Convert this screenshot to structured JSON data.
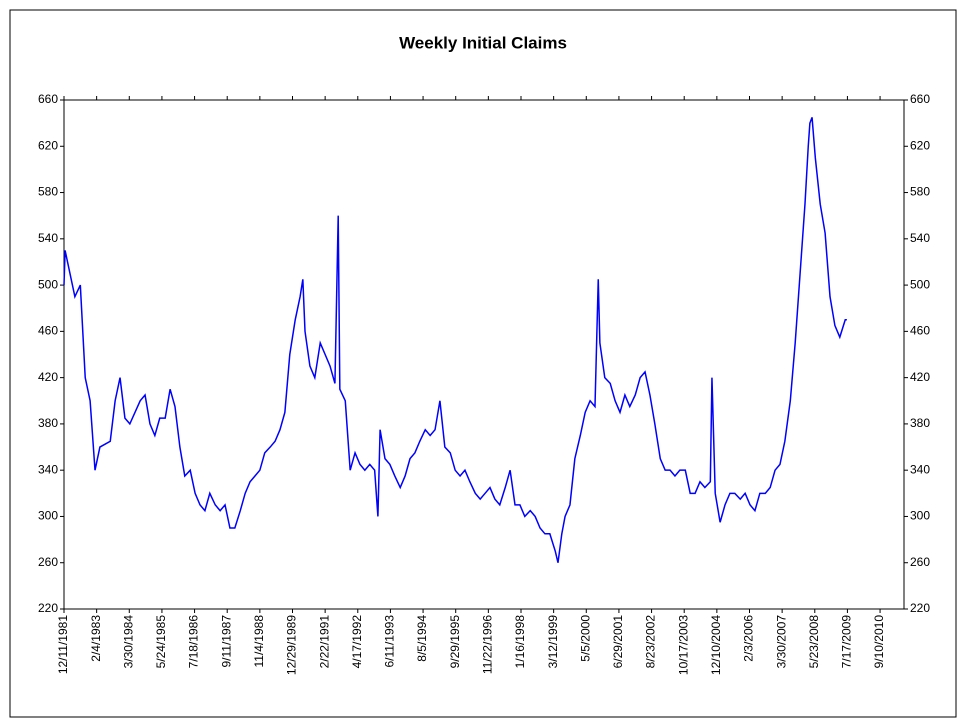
{
  "chart_data": {
    "type": "line",
    "title": "Weekly Initial Claims",
    "x": [
      0,
      2,
      20,
      30,
      39,
      48,
      57,
      66,
      85,
      94,
      103,
      112,
      121,
      140,
      149,
      158,
      167,
      176,
      186,
      195,
      204,
      213,
      222,
      232,
      241,
      250,
      259,
      268,
      278,
      287,
      296,
      305,
      314,
      324,
      333,
      342,
      351,
      360,
      369,
      379,
      388,
      397,
      406,
      415,
      425,
      434,
      439,
      443,
      452,
      461,
      471,
      480,
      489,
      498,
      504,
      507,
      517,
      526,
      535,
      544,
      553,
      562,
      571,
      577,
      581,
      590,
      599,
      608,
      618,
      627,
      636,
      645,
      654,
      664,
      673,
      682,
      691,
      700,
      710,
      719,
      728,
      737,
      746,
      756,
      765,
      774,
      783,
      792,
      801,
      811,
      820,
      829,
      838,
      847,
      857,
      866,
      875,
      884,
      893,
      903,
      908,
      915,
      921,
      930,
      939,
      949,
      958,
      967,
      976,
      982,
      985,
      994,
      1004,
      1013,
      1022,
      1031,
      1040,
      1050,
      1059,
      1068,
      1077,
      1086,
      1096,
      1105,
      1114,
      1123,
      1132,
      1142,
      1151,
      1160,
      1169,
      1178,
      1188,
      1191,
      1197,
      1206,
      1215,
      1224,
      1233,
      1243,
      1252,
      1261,
      1270,
      1279,
      1289,
      1298,
      1307,
      1316,
      1325,
      1335,
      1344,
      1353,
      1362,
      1368,
      1371,
      1375,
      1381,
      1390,
      1399,
      1408,
      1417,
      1426,
      1436,
      1439
    ],
    "series": [
      {
        "name": "Weekly Initial Claims",
        "color": "#0000ff",
        "values": [
          500,
          530,
          490,
          500,
          420,
          400,
          340,
          360,
          365,
          400,
          420,
          385,
          380,
          400,
          405,
          380,
          370,
          385,
          385,
          410,
          395,
          360,
          335,
          340,
          320,
          310,
          305,
          320,
          310,
          305,
          310,
          290,
          290,
          305,
          320,
          330,
          335,
          340,
          355,
          360,
          365,
          375,
          390,
          440,
          470,
          490,
          505,
          460,
          430,
          420,
          450,
          440,
          430,
          415,
          560,
          410,
          400,
          340,
          355,
          345,
          340,
          345,
          340,
          300,
          375,
          350,
          345,
          335,
          325,
          335,
          350,
          355,
          365,
          375,
          370,
          375,
          400,
          360,
          355,
          340,
          335,
          340,
          330,
          320,
          315,
          320,
          325,
          315,
          310,
          325,
          340,
          310,
          310,
          300,
          305,
          300,
          290,
          285,
          285,
          270,
          260,
          285,
          300,
          310,
          350,
          370,
          390,
          400,
          395,
          505,
          450,
          420,
          415,
          400,
          390,
          405,
          395,
          405,
          420,
          425,
          405,
          380,
          350,
          340,
          340,
          335,
          340,
          340,
          320,
          320,
          330,
          325,
          330,
          420,
          320,
          295,
          310,
          320,
          320,
          315,
          320,
          310,
          305,
          320,
          320,
          325,
          340,
          345,
          365,
          400,
          450,
          510,
          570,
          620,
          640,
          645,
          610,
          570,
          545,
          490,
          465,
          455,
          470,
          470
        ]
      }
    ],
    "xlim": [
      0,
      1544
    ],
    "xticks": [
      {
        "value": 0,
        "label": "12/11/1981"
      },
      {
        "value": 60,
        "label": "2/4/1983"
      },
      {
        "value": 120,
        "label": "3/30/1984"
      },
      {
        "value": 180,
        "label": "5/24/1985"
      },
      {
        "value": 240,
        "label": "7/18/1986"
      },
      {
        "value": 300,
        "label": "9/11/1987"
      },
      {
        "value": 360,
        "label": "11/4/1988"
      },
      {
        "value": 420,
        "label": "12/29/1989"
      },
      {
        "value": 480,
        "label": "2/22/1991"
      },
      {
        "value": 540,
        "label": "4/17/1992"
      },
      {
        "value": 600,
        "label": "6/11/1993"
      },
      {
        "value": 660,
        "label": "8/5/1994"
      },
      {
        "value": 720,
        "label": "9/29/1995"
      },
      {
        "value": 780,
        "label": "11/22/1996"
      },
      {
        "value": 840,
        "label": "1/16/1998"
      },
      {
        "value": 900,
        "label": "3/12/1999"
      },
      {
        "value": 960,
        "label": "5/5/2000"
      },
      {
        "value": 1020,
        "label": "6/29/2001"
      },
      {
        "value": 1080,
        "label": "8/23/2002"
      },
      {
        "value": 1140,
        "label": "10/17/2003"
      },
      {
        "value": 1200,
        "label": "12/10/2004"
      },
      {
        "value": 1260,
        "label": "2/3/2006"
      },
      {
        "value": 1320,
        "label": "3/30/2007"
      },
      {
        "value": 1380,
        "label": "5/23/2008"
      },
      {
        "value": 1440,
        "label": "7/17/2009"
      },
      {
        "value": 1500,
        "label": "9/10/2010"
      }
    ],
    "ylim": [
      220,
      660
    ],
    "yticks": [
      220,
      260,
      300,
      340,
      380,
      420,
      460,
      500,
      540,
      580,
      620,
      660
    ],
    "y2lim": [
      220,
      660
    ],
    "y2ticks": [
      220,
      260,
      300,
      340,
      380,
      420,
      460,
      500,
      540,
      580,
      620,
      660
    ]
  }
}
